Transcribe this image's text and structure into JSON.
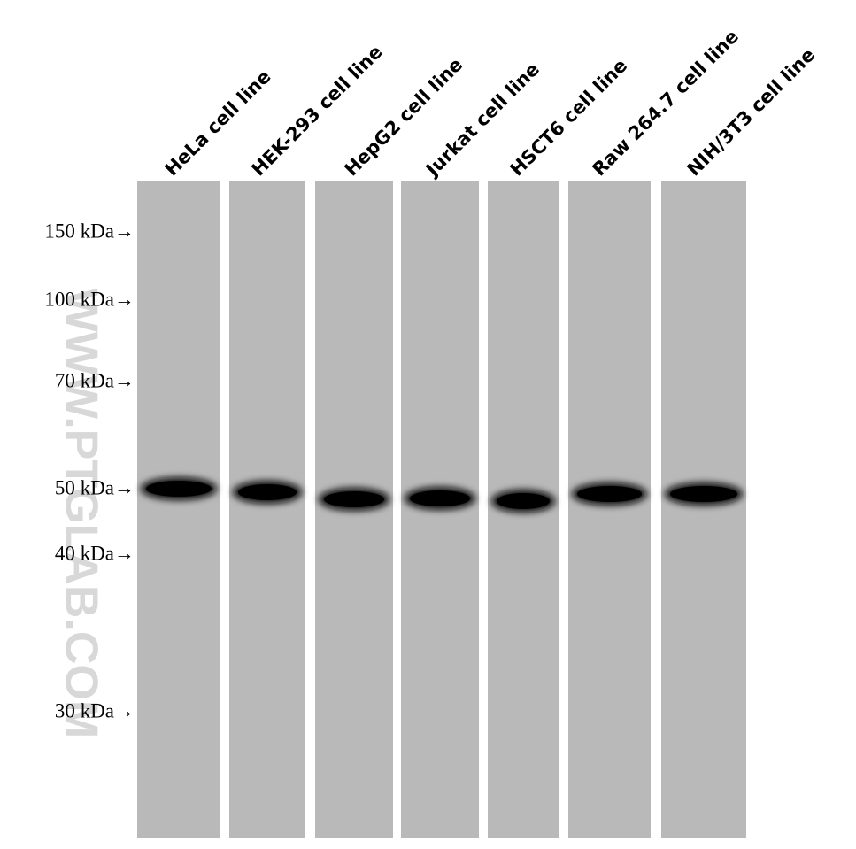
{
  "lanes": [
    "HeLa cell line",
    "HEK-293 cell line",
    "HepG2 cell line",
    "Jurkat cell line",
    "HSCT6 cell line",
    "Raw 264.7 cell line",
    "NIH/3T3 cell line"
  ],
  "markers": [
    "150 kDa→",
    "100 kDa→",
    "70 kDa→",
    "50 kDa→",
    "40 kDa→",
    "30 kDa→"
  ],
  "watermark": "WWW.PTGLAB.COM"
}
